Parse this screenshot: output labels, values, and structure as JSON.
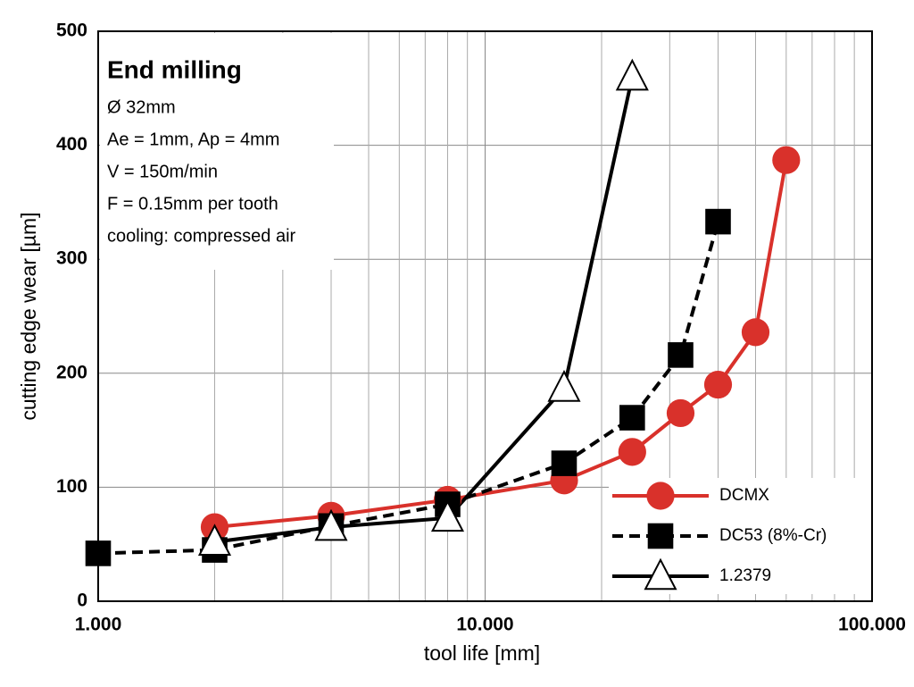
{
  "chart_data": {
    "type": "line",
    "title": "End milling",
    "annotations": [
      "Ø 32mm",
      "Ae = 1mm, Ap = 4mm",
      "V = 150m/min",
      "F = 0.15mm per tooth",
      "cooling: compressed air"
    ],
    "x_label": "tool life [mm]",
    "y_label": "cutting edge wear [µm]",
    "x_scale": "log",
    "xlim": [
      1000,
      100000
    ],
    "xticks": [
      {
        "value": 1000,
        "label": "1.000"
      },
      {
        "value": 10000,
        "label": "10.000"
      },
      {
        "value": 100000,
        "label": "100.000"
      }
    ],
    "ylim": [
      0,
      500
    ],
    "yticks": [
      0,
      100,
      200,
      300,
      400,
      500
    ],
    "grid": true,
    "legend": "lower right",
    "series": [
      {
        "name": "DCMX",
        "color": "#d9312b",
        "marker": "circle",
        "dash": false,
        "x": [
          2000,
          4000,
          8000,
          16000,
          24000,
          32000,
          40000,
          50000,
          60000
        ],
        "values": [
          65,
          75,
          89,
          106,
          131,
          165,
          190,
          236,
          387
        ]
      },
      {
        "name": "DC53 (8%-Cr)",
        "color": "#000000",
        "marker": "square",
        "dash": true,
        "x": [
          1000,
          2000,
          4000,
          8000,
          16000,
          24000,
          32000,
          40000
        ],
        "values": [
          42,
          45,
          66,
          85,
          121,
          161,
          216,
          333
        ]
      },
      {
        "name": "1.2379",
        "color": "#000000",
        "marker": "triangle",
        "dash": false,
        "x": [
          2000,
          4000,
          8000,
          16000,
          24000
        ],
        "values": [
          52,
          65,
          73,
          187,
          460
        ]
      }
    ]
  }
}
